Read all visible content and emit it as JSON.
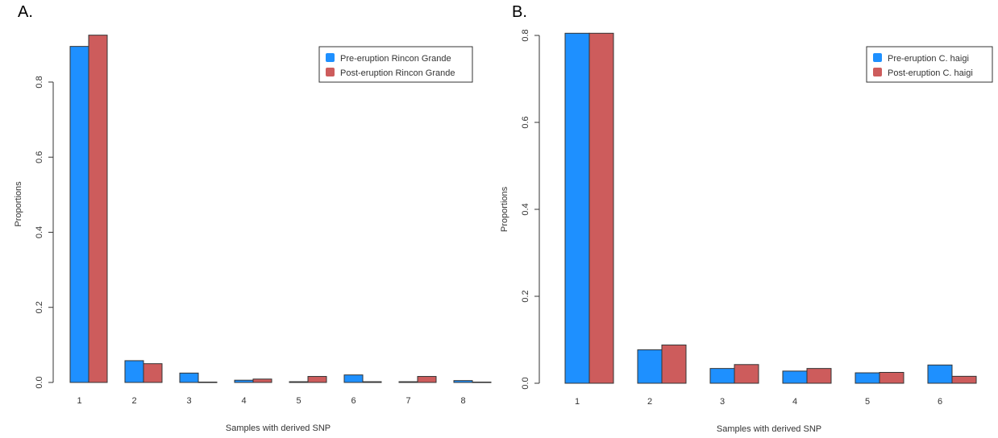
{
  "chart_data": [
    {
      "panel_label": "A.",
      "type": "bar",
      "categories": [
        "1",
        "2",
        "3",
        "4",
        "5",
        "6",
        "7",
        "8"
      ],
      "series": [
        {
          "name": "Pre-eruption Rincon Grande",
          "color": "#1e90ff",
          "values": [
            0.895,
            0.058,
            0.025,
            0.006,
            0.002,
            0.02,
            0.002,
            0.005
          ]
        },
        {
          "name": "Post-eruption Rincon Grande",
          "color": "#cd5c5c",
          "values": [
            0.925,
            0.05,
            0.001,
            0.009,
            0.016,
            0.002,
            0.016,
            0.001
          ]
        }
      ],
      "xlabel": "Samples with derived SNP",
      "ylabel": "Proportions",
      "ylim": [
        0,
        0.95
      ],
      "yticks": [
        "0.0",
        "0.2",
        "0.4",
        "0.6",
        "0.8"
      ],
      "legend": "top-right",
      "grid": false
    },
    {
      "panel_label": "B.",
      "type": "bar",
      "categories": [
        "1",
        "2",
        "3",
        "4",
        "5",
        "6"
      ],
      "series": [
        {
          "name": "Pre-eruption C. haigi",
          "color": "#1e90ff",
          "values": [
            0.805,
            0.077,
            0.034,
            0.028,
            0.024,
            0.042
          ]
        },
        {
          "name": "Post-eruption C. haigi",
          "color": "#cd5c5c",
          "values": [
            0.805,
            0.088,
            0.043,
            0.034,
            0.025,
            0.016
          ]
        }
      ],
      "xlabel": "Samples with derived SNP",
      "ylabel": "Proportions",
      "ylim": [
        0,
        0.8
      ],
      "yticks": [
        "0.0",
        "0.2",
        "0.4",
        "0.6",
        "0.8"
      ],
      "legend": "top-right",
      "grid": false
    }
  ]
}
